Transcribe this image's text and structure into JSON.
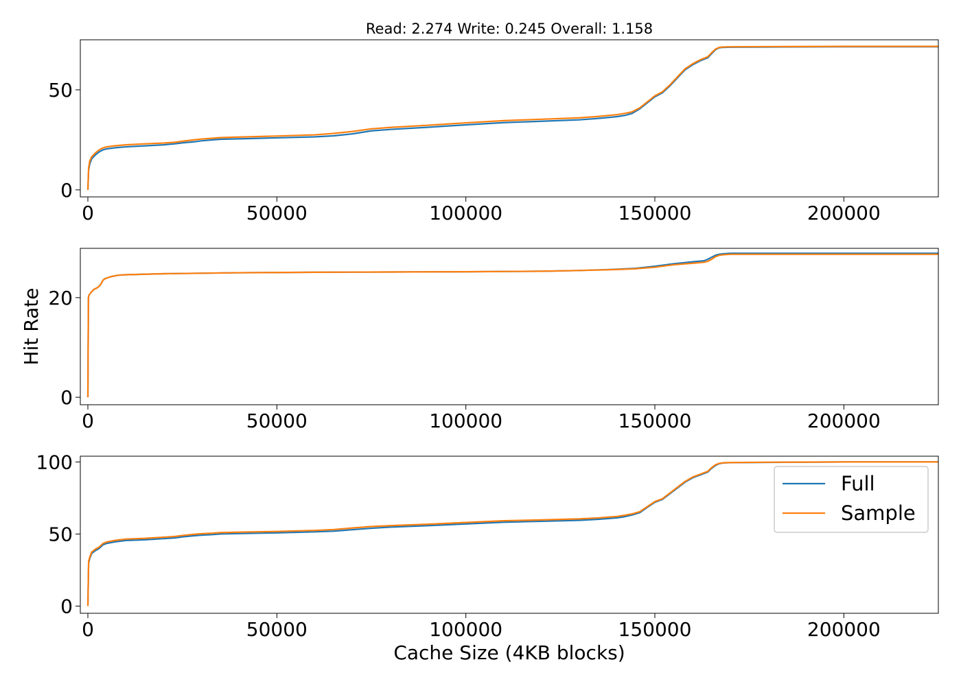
{
  "chart_data": {
    "type": "line",
    "title": "Read: 2.274 Write: 0.245 Overall: 1.158",
    "xlabel": "Cache Size (4KB blocks)",
    "ylabel": "Hit Rate",
    "legend": {
      "placement": "upper-right",
      "entries": [
        "Full",
        "Sample"
      ]
    },
    "colors": {
      "Full": "#1f77b4",
      "Sample": "#ff7f0e"
    },
    "grid": false,
    "panels": [
      {
        "xlim": [
          -2000,
          225000
        ],
        "ylim": [
          -3.5,
          75
        ],
        "xticks": [
          0,
          50000,
          100000,
          150000,
          200000
        ],
        "xtick_labels": [
          "0",
          "50000",
          "100000",
          "150000",
          "200000"
        ],
        "yticks": [
          0,
          50
        ],
        "ytick_labels": [
          "0",
          "50"
        ],
        "series": [
          {
            "name": "Full",
            "x": [
              0,
              200,
              500,
              1000,
              2000,
              3000,
              4000,
              5000,
              7000,
              10000,
              15000,
              20000,
              23000,
              25000,
              28000,
              30000,
              33000,
              35000,
              40000,
              50000,
              60000,
              65000,
              70000,
              75000,
              80000,
              90000,
              100000,
              110000,
              120000,
              130000,
              135000,
              140000,
              142000,
              144000,
              146000,
              148000,
              150000,
              152000,
              154000,
              156000,
              158000,
              160000,
              162000,
              164000,
              165000,
              166000,
              167000,
              168000,
              170000,
              180000,
              200000,
              225000
            ],
            "y": [
              0,
              10,
              13,
              15.5,
              17.5,
              19,
              20,
              20.5,
              21,
              21.5,
              22,
              22.5,
              23,
              23.5,
              24,
              24.5,
              25,
              25.3,
              25.5,
              26,
              26.5,
              27,
              28,
              29.5,
              30.2,
              31.3,
              32.5,
              33.6,
              34.3,
              35,
              35.7,
              36.6,
              37.2,
              38.2,
              40.5,
              43.5,
              46.5,
              48.5,
              52,
              56,
              60,
              62.5,
              64.5,
              66,
              68,
              70,
              71,
              71.2,
              71.3,
              71.4,
              71.5,
              71.5
            ]
          },
          {
            "name": "Sample",
            "x": [
              0,
              200,
              500,
              1000,
              2000,
              3000,
              4000,
              5000,
              7000,
              10000,
              15000,
              20000,
              23000,
              25000,
              28000,
              30000,
              33000,
              35000,
              40000,
              50000,
              60000,
              65000,
              70000,
              75000,
              80000,
              90000,
              100000,
              110000,
              120000,
              130000,
              135000,
              140000,
              142000,
              144000,
              146000,
              148000,
              150000,
              152000,
              154000,
              156000,
              158000,
              160000,
              162000,
              164000,
              165000,
              166000,
              167000,
              168000,
              170000,
              180000,
              200000,
              225000
            ],
            "y": [
              0,
              11,
              14.5,
              16.5,
              18.5,
              20,
              21,
              21.5,
              22,
              22.5,
              23,
              23.4,
              23.8,
              24.3,
              25,
              25.4,
              25.8,
              26.1,
              26.4,
              26.9,
              27.5,
              28.2,
              29.2,
              30.5,
              31.2,
              32.3,
              33.5,
              34.6,
              35.3,
              36,
              36.7,
              37.6,
              38.2,
              39,
              41,
              44,
              47,
              49,
              52.5,
              56.5,
              60.5,
              63,
              65,
              66.5,
              68.5,
              70.3,
              71.2,
              71.4,
              71.5,
              71.6,
              71.7,
              71.7
            ]
          }
        ]
      },
      {
        "xlim": [
          -2000,
          225000
        ],
        "ylim": [
          -1.5,
          29.9
        ],
        "xticks": [
          0,
          50000,
          100000,
          150000,
          200000
        ],
        "xtick_labels": [
          "0",
          "50000",
          "100000",
          "150000",
          "200000"
        ],
        "yticks": [
          0,
          20
        ],
        "ytick_labels": [
          "0",
          "20"
        ],
        "series": [
          {
            "name": "Full",
            "x": [
              0,
              150,
              300,
              800,
              1500,
              2500,
              3000,
              3500,
              4000,
              4500,
              6000,
              8000,
              10000,
              20000,
              40000,
              60000,
              80000,
              100000,
              120000,
              130000,
              140000,
              145000,
              150000,
              155000,
              160000,
              163000,
              164000,
              165000,
              166000,
              167000,
              168000,
              170000,
              200000,
              225000
            ],
            "y": [
              0,
              20,
              20.5,
              21,
              21.6,
              22,
              22.3,
              22.8,
              23.5,
              23.8,
              24.2,
              24.5,
              24.6,
              24.8,
              25,
              25.1,
              25.15,
              25.2,
              25.3,
              25.45,
              25.7,
              25.9,
              26.3,
              26.8,
              27.2,
              27.4,
              27.7,
              28.1,
              28.5,
              28.7,
              28.8,
              28.9,
              28.9,
              28.9
            ]
          },
          {
            "name": "Sample",
            "x": [
              0,
              150,
              300,
              800,
              1500,
              2500,
              3000,
              3500,
              4000,
              4500,
              6000,
              8000,
              10000,
              20000,
              40000,
              60000,
              80000,
              100000,
              120000,
              130000,
              140000,
              145000,
              150000,
              155000,
              160000,
              163000,
              164000,
              165000,
              166000,
              167000,
              168000,
              170000,
              200000,
              225000
            ],
            "y": [
              0,
              20,
              20.5,
              21,
              21.6,
              22,
              22.3,
              22.8,
              23.5,
              23.8,
              24.2,
              24.5,
              24.6,
              24.8,
              25,
              25.1,
              25.15,
              25.2,
              25.3,
              25.45,
              25.65,
              25.8,
              26.1,
              26.6,
              26.9,
              27.1,
              27.3,
              27.7,
              28.2,
              28.5,
              28.6,
              28.7,
              28.7,
              28.7
            ]
          }
        ]
      },
      {
        "xlim": [
          -2000,
          225000
        ],
        "ylim": [
          -5,
          104
        ],
        "xticks": [
          0,
          50000,
          100000,
          150000,
          200000
        ],
        "xtick_labels": [
          "0",
          "50000",
          "100000",
          "150000",
          "200000"
        ],
        "yticks": [
          0,
          50,
          100
        ],
        "ytick_labels": [
          "0",
          "50",
          "100"
        ],
        "series": [
          {
            "name": "Full",
            "x": [
              0,
              200,
              500,
              1000,
              2000,
              3000,
              4000,
              5000,
              7000,
              10000,
              15000,
              20000,
              23000,
              25000,
              28000,
              30000,
              33000,
              35000,
              40000,
              50000,
              60000,
              65000,
              70000,
              75000,
              80000,
              90000,
              100000,
              110000,
              120000,
              130000,
              135000,
              140000,
              142000,
              144000,
              146000,
              148000,
              150000,
              152000,
              154000,
              156000,
              158000,
              160000,
              162000,
              164000,
              165000,
              166000,
              167000,
              168000,
              170000,
              180000,
              200000,
              225000
            ],
            "y": [
              0,
              30,
              33,
              36.5,
              38.5,
              40,
              42.5,
              43.5,
              44.5,
              45.5,
              46,
              46.8,
              47.3,
              48,
              48.8,
              49.2,
              49.6,
              50,
              50.3,
              50.8,
              51.5,
              52,
              53,
              54,
              54.8,
              55.8,
              57,
              58.2,
              58.8,
              59.5,
              60.2,
              61.2,
              62,
              63.2,
              64.8,
              68.5,
              72,
              74,
              78,
              82,
              86,
              89,
              91,
              93,
              95.5,
              97.5,
              98.8,
              99.3,
              99.5,
              99.7,
              100,
              100
            ]
          },
          {
            "name": "Sample",
            "x": [
              0,
              200,
              500,
              1000,
              2000,
              3000,
              4000,
              5000,
              7000,
              10000,
              15000,
              20000,
              23000,
              25000,
              28000,
              30000,
              33000,
              35000,
              40000,
              50000,
              60000,
              65000,
              70000,
              75000,
              80000,
              90000,
              100000,
              110000,
              120000,
              130000,
              135000,
              140000,
              142000,
              144000,
              146000,
              148000,
              150000,
              152000,
              154000,
              156000,
              158000,
              160000,
              162000,
              164000,
              165000,
              166000,
              167000,
              168000,
              170000,
              180000,
              200000,
              225000
            ],
            "y": [
              0,
              31,
              34,
              37.5,
              39.5,
              41,
              43.5,
              44.5,
              45.5,
              46.5,
              47,
              47.8,
              48.3,
              49,
              49.8,
              50.2,
              50.6,
              51,
              51.3,
              51.8,
              52.5,
              53.1,
              54.2,
              55.2,
              55.8,
              56.8,
              58,
              59.2,
              59.8,
              60.5,
              61.2,
              62.2,
              63,
              64,
              65.5,
              69,
              72.5,
              74.5,
              78.5,
              82.5,
              86.5,
              89.5,
              91.5,
              93.5,
              96,
              98,
              99,
              99.4,
              99.6,
              99.8,
              100,
              100
            ]
          }
        ]
      }
    ]
  }
}
